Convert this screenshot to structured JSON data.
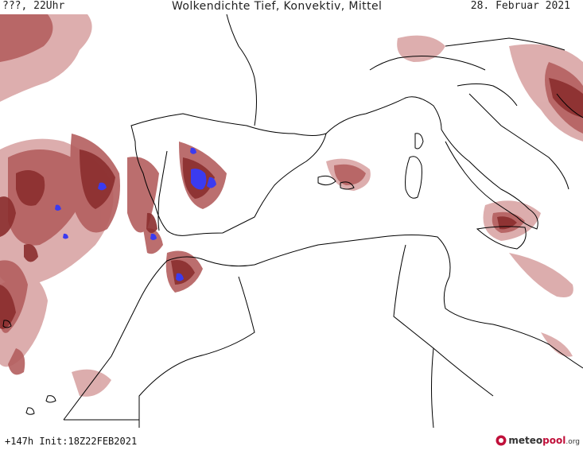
{
  "header": {
    "left": "???, 22Uhr",
    "title": "Wolkendichte   Tief, Konvektiv, Mittel",
    "date": "28. Februar 2021"
  },
  "footer": {
    "run": "+147h  Init:18Z22FEB2021",
    "logo_main": "meteo",
    "logo_accent": "pool",
    "logo_suffix": ".org"
  },
  "colors": {
    "cloud_dark": "#8b2e2e",
    "cloud_medium": "#b45f5f",
    "cloud_light": "#d9a5a5",
    "convective": "#3b3bf0",
    "coastline": "#000000",
    "background": "#ffffff"
  },
  "map": {
    "region": "Western Mediterranean / Iberia / North Africa",
    "legend": "none"
  }
}
